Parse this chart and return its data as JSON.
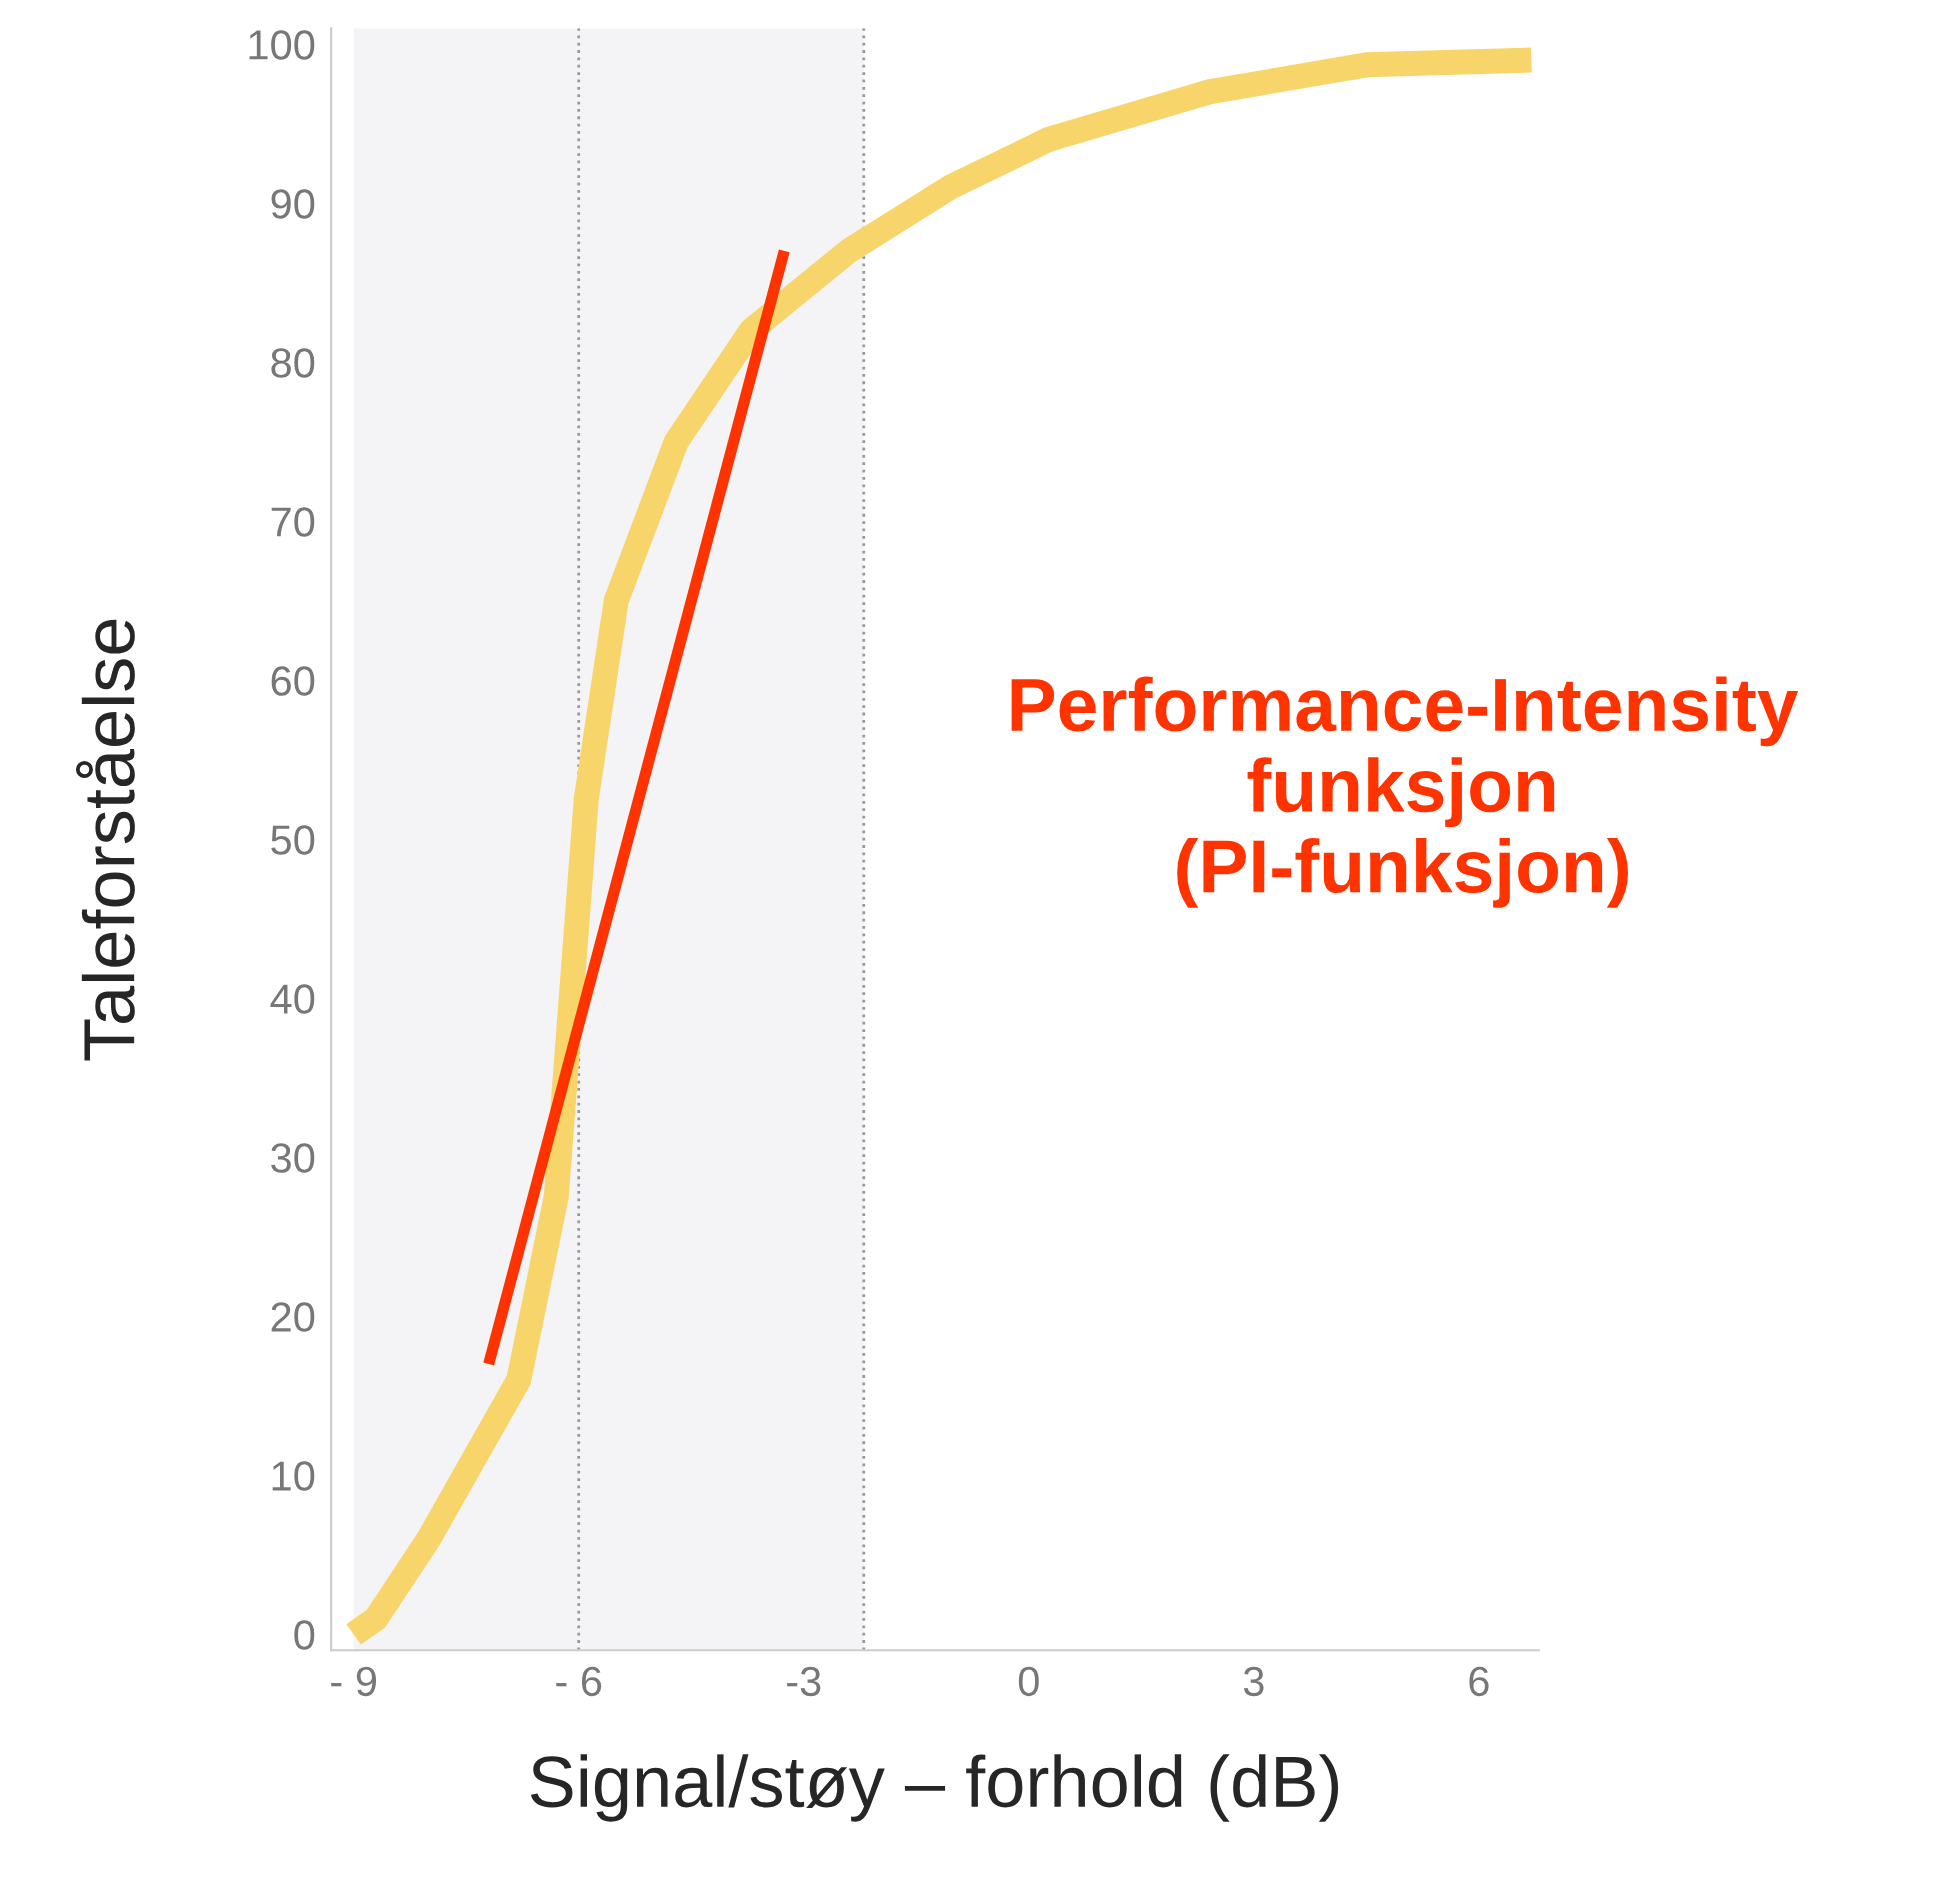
{
  "chart_data": {
    "type": "line",
    "xlabel": "Signal/støy – forhold (dB)",
    "ylabel": "Taleforståelse",
    "series": [
      {
        "color": "#f7d56a",
        "x": [
          -9,
          -8.7,
          -8,
          -7.4,
          -6.8,
          -6.3,
          -5.9,
          -5.5,
          -4.7,
          -3.7,
          -2.4,
          -1.05,
          0.26,
          2.4,
          4.5,
          6.7
        ],
        "values": [
          0,
          1,
          6,
          11,
          16,
          27.5,
          52.5,
          65,
          75,
          82,
          87,
          91,
          94,
          97,
          98.7,
          99
        ]
      },
      {
        "color": "#ff3300",
        "x": [
          -7.2,
          -3.26
        ],
        "values": [
          17,
          87
        ]
      }
    ],
    "xlim": [
      -9.3,
      6.8
    ],
    "ylim": [
      -1,
      101
    ],
    "xticks": [
      {
        "value": -9,
        "label": "- 9"
      },
      {
        "value": -6,
        "label": "- 6"
      },
      -3,
      0,
      3,
      6
    ],
    "yticks": [
      0,
      10,
      20,
      30,
      40,
      50,
      60,
      70,
      80,
      90,
      100
    ],
    "ref_lines": [
      {
        "axis": "x",
        "value": -6,
        "color": "#999999",
        "line_style": "dotted"
      },
      {
        "axis": "x",
        "value": -2.2,
        "color": "#999999",
        "line_style": "dotted"
      }
    ],
    "bands": [
      {
        "axis": "x",
        "from": -9,
        "to": -2.2,
        "color": "#f4f4f6"
      }
    ],
    "annotations": [
      "Performance-Intensity\nfunksjon\n(PI-funksjon)"
    ],
    "grid": false,
    "legend": false,
    "marker": "none",
    "line_style": "solid"
  }
}
